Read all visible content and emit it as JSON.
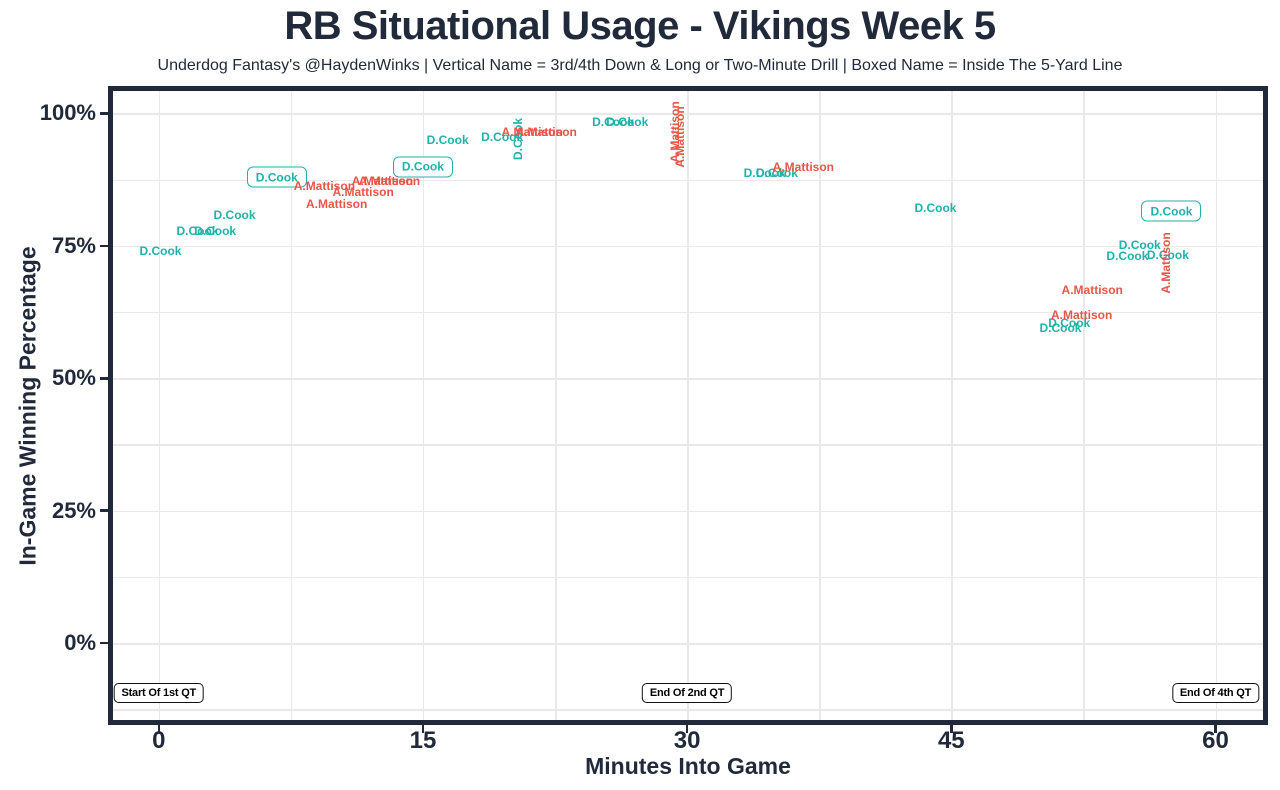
{
  "header": {
    "title": "RB Situational Usage - Vikings Week 5",
    "subtitle": "Underdog Fantasy's @HaydenWinks | Vertical Name = 3rd/4th Down & Long or Two-Minute Drill | Boxed Name = Inside The 5-Yard Line"
  },
  "colors": {
    "cook_teal": "#20b2aa",
    "mattison_red": "#e85549",
    "ink": "#212a3a",
    "grid": "#e9e9e9",
    "annotation_border": "#111111",
    "background": "#ffffff"
  },
  "chart_data": {
    "type": "scatter",
    "title": "RB Situational Usage - Vikings Week 5",
    "subtitle": "Underdog Fantasy's @HaydenWinks | Vertical Name = 3rd/4th Down & Long or Two-Minute Drill | Boxed Name = Inside The 5-Yard Line",
    "xlabel": "Minutes Into Game",
    "ylabel": "In-Game Winning Percentage",
    "xlim": [
      -2.6,
      62.7
    ],
    "ylim": [
      -14.5,
      104.2
    ],
    "grid": "on",
    "legend": "none",
    "point_style_meaning": {
      "plain": "normal snap",
      "vertical": "3rd/4th Down & Long or Two-Minute Drill",
      "boxed": "Inside The 5-Yard Line"
    },
    "x_ticks": [
      {
        "value": 0,
        "label": "0"
      },
      {
        "value": 15,
        "label": "15"
      },
      {
        "value": 30,
        "label": "30"
      },
      {
        "value": 45,
        "label": "45"
      },
      {
        "value": 60,
        "label": "60"
      }
    ],
    "y_ticks": [
      {
        "value": 0,
        "label": "0%"
      },
      {
        "value": 25,
        "label": "25%"
      },
      {
        "value": 50,
        "label": "50%"
      },
      {
        "value": 75,
        "label": "75%"
      },
      {
        "value": 100,
        "label": "100%"
      }
    ],
    "x_gridlines": [
      0,
      7.5,
      15,
      22.5,
      30,
      37.5,
      45,
      52.5,
      60
    ],
    "y_gridlines": [
      -12.5,
      0,
      12.5,
      25,
      37.5,
      50,
      62.5,
      75,
      87.5,
      100
    ],
    "series": [
      {
        "name": "D.Cook",
        "key": "cook",
        "color": "#20b2aa",
        "points": [
          {
            "x": 0.1,
            "y": 74.0,
            "style": "plain"
          },
          {
            "x": 2.2,
            "y": 77.7,
            "style": "plain"
          },
          {
            "x": 3.2,
            "y": 77.7,
            "style": "plain"
          },
          {
            "x": 4.3,
            "y": 80.8,
            "style": "plain"
          },
          {
            "x": 6.7,
            "y": 87.9,
            "style": "boxed"
          },
          {
            "x": 15.0,
            "y": 89.9,
            "style": "boxed"
          },
          {
            "x": 16.4,
            "y": 94.9,
            "style": "plain"
          },
          {
            "x": 19.5,
            "y": 95.5,
            "style": "plain"
          },
          {
            "x": 20.4,
            "y": 95.2,
            "style": "vertical"
          },
          {
            "x": 25.8,
            "y": 98.3,
            "style": "plain"
          },
          {
            "x": 26.6,
            "y": 98.3,
            "style": "plain"
          },
          {
            "x": 34.4,
            "y": 88.7,
            "style": "plain"
          },
          {
            "x": 35.1,
            "y": 88.7,
            "style": "plain"
          },
          {
            "x": 44.1,
            "y": 82.1,
            "style": "plain"
          },
          {
            "x": 57.5,
            "y": 81.5,
            "style": "boxed"
          },
          {
            "x": 55.7,
            "y": 75.1,
            "style": "plain"
          },
          {
            "x": 55.0,
            "y": 73.0,
            "style": "plain"
          },
          {
            "x": 57.3,
            "y": 73.2,
            "style": "plain"
          },
          {
            "x": 51.7,
            "y": 60.4,
            "style": "plain"
          },
          {
            "x": 51.2,
            "y": 59.4,
            "style": "plain"
          }
        ]
      },
      {
        "name": "A.Mattison",
        "key": "mattison",
        "color": "#e85549",
        "points": [
          {
            "x": 9.4,
            "y": 86.3,
            "style": "plain"
          },
          {
            "x": 12.7,
            "y": 87.2,
            "style": "plain"
          },
          {
            "x": 13.1,
            "y": 87.2,
            "style": "plain"
          },
          {
            "x": 11.6,
            "y": 85.1,
            "style": "plain"
          },
          {
            "x": 10.1,
            "y": 82.9,
            "style": "plain"
          },
          {
            "x": 21.2,
            "y": 96.4,
            "style": "plain"
          },
          {
            "x": 22.0,
            "y": 96.4,
            "style": "plain"
          },
          {
            "x": 29.3,
            "y": 96.4,
            "style": "vertical"
          },
          {
            "x": 29.6,
            "y": 95.6,
            "style": "vertical"
          },
          {
            "x": 36.6,
            "y": 89.9,
            "style": "plain"
          },
          {
            "x": 57.2,
            "y": 71.7,
            "style": "vertical"
          },
          {
            "x": 53.0,
            "y": 66.6,
            "style": "plain"
          },
          {
            "x": 52.4,
            "y": 61.9,
            "style": "plain"
          }
        ]
      }
    ],
    "annotations": [
      {
        "text": "Start Of 1st QT",
        "x": 0,
        "y": -9.4
      },
      {
        "text": "End Of 2nd QT",
        "x": 30,
        "y": -9.4
      },
      {
        "text": "End Of 4th QT",
        "x": 60,
        "y": -9.4
      }
    ]
  }
}
